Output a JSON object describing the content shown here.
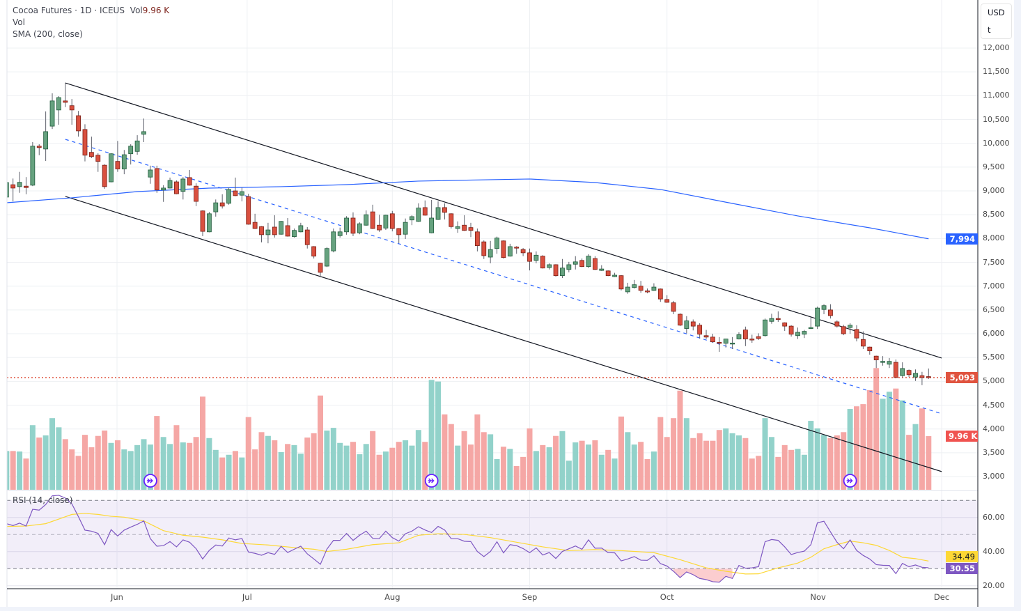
{
  "legend": {
    "symbol_line": "Cocoa Futures · 1D · ICEUS",
    "volume_label": "Vol",
    "volume_value": "9.96 K",
    "volume_pane_label": "Vol",
    "sma_label": "SMA (200, close)",
    "rsi_label": "RSI (14, close)"
  },
  "price_axis": {
    "currency": "USD",
    "unit": "t",
    "labels": [
      "12,000",
      "11,500",
      "11,000",
      "10,500",
      "10,000",
      "9,500",
      "9,000",
      "8,500",
      "8,000",
      "7,500",
      "7,000",
      "6,500",
      "6,000",
      "5,500",
      "5,000",
      "4,500",
      "4,000",
      "3,500",
      "3,000"
    ],
    "rsi_labels": [
      "60.00",
      "40.00",
      "20.00"
    ]
  },
  "badges": {
    "last_price": "5,093",
    "last_volume": "9.96 K",
    "sma_value": "7,994",
    "rsi_ma_value": "34.49",
    "rsi_value": "30.55"
  },
  "colors": {
    "up": "#66a27f",
    "up_border": "#1e5a3a",
    "down": "#d9503f",
    "down_border": "#7a1d14",
    "vol_up": "#92d2ca",
    "vol_down": "#f5a7a5",
    "sma": "#2962ff",
    "rsi": "#7e57c2",
    "rsi_ma": "#fdd835",
    "last_price": "#e0533f",
    "volume_badge": "#f05350"
  },
  "chart_data": {
    "type": "candlestick",
    "title": "Cocoa Futures · 1D · ICEUS",
    "x_tick_labels": [
      "Jun",
      "Jul",
      "Aug",
      "Sep",
      "Oct",
      "Nov",
      "Dec"
    ],
    "ylim": [
      3000,
      12000
    ],
    "candles_ohlc": [
      [
        8870,
        9200,
        8850,
        9176
      ],
      [
        9130,
        9260,
        8780,
        9060
      ],
      [
        9090,
        9400,
        8960,
        9180
      ],
      [
        9100,
        9290,
        8930,
        9070
      ],
      [
        9120,
        10025,
        9100,
        9940
      ],
      [
        9940,
        9980,
        9750,
        9910
      ],
      [
        9880,
        10670,
        9630,
        10245
      ],
      [
        10360,
        11050,
        10300,
        10890
      ],
      [
        10700,
        10990,
        10390,
        10960
      ],
      [
        10890,
        11270,
        10760,
        10860
      ],
      [
        10790,
        10930,
        10390,
        10700
      ],
      [
        10580,
        10680,
        10140,
        10260
      ],
      [
        10290,
        10400,
        9620,
        9750
      ],
      [
        9810,
        10140,
        9690,
        9720
      ],
      [
        9750,
        9790,
        9400,
        9620
      ],
      [
        9540,
        9560,
        9045,
        9090
      ],
      [
        9190,
        9790,
        9180,
        9780
      ],
      [
        9620,
        10050,
        9400,
        9460
      ],
      [
        9460,
        9860,
        9350,
        9760
      ],
      [
        9780,
        9980,
        9555,
        9940
      ],
      [
        9830,
        10170,
        9760,
        10050
      ],
      [
        10190,
        10520,
        10025,
        10245
      ],
      [
        9290,
        9530,
        9150,
        9440
      ],
      [
        9470,
        9530,
        8960,
        9020
      ],
      [
        9020,
        9120,
        8770,
        9060
      ],
      [
        9060,
        9280,
        9050,
        9220
      ],
      [
        9190,
        9220,
        8930,
        8940
      ],
      [
        8990,
        9290,
        8820,
        9250
      ],
      [
        9280,
        9440,
        9110,
        9120
      ],
      [
        9100,
        9160,
        8680,
        8780
      ],
      [
        8580,
        8590,
        8050,
        8150
      ],
      [
        8140,
        8560,
        8130,
        8520
      ],
      [
        8560,
        8820,
        8460,
        8750
      ],
      [
        8750,
        8930,
        8630,
        8680
      ],
      [
        8740,
        9070,
        8710,
        9030
      ],
      [
        9000,
        9280,
        8890,
        8900
      ],
      [
        8910,
        9070,
        8780,
        8985
      ],
      [
        8880,
        8940,
        8290,
        8300
      ],
      [
        8340,
        8520,
        8200,
        8210
      ],
      [
        8250,
        8260,
        7920,
        8080
      ],
      [
        8080,
        8330,
        7900,
        8180
      ],
      [
        8240,
        8490,
        8020,
        8080
      ],
      [
        8090,
        8370,
        8080,
        8360
      ],
      [
        8270,
        8430,
        8040,
        8050
      ],
      [
        8040,
        8210,
        8020,
        8170
      ],
      [
        8140,
        8330,
        8130,
        8270
      ],
      [
        8180,
        8240,
        7790,
        7870
      ],
      [
        7830,
        7840,
        7580,
        7630
      ],
      [
        7480,
        7490,
        7200,
        7290
      ],
      [
        7420,
        7820,
        7400,
        7790
      ],
      [
        7740,
        8210,
        7710,
        8140
      ],
      [
        8060,
        8230,
        8020,
        8140
      ],
      [
        8140,
        8470,
        8080,
        8430
      ],
      [
        8430,
        8550,
        8050,
        8110
      ],
      [
        8120,
        8340,
        8090,
        8310
      ],
      [
        8280,
        8590,
        8270,
        8500
      ],
      [
        8560,
        8710,
        8200,
        8210
      ],
      [
        8280,
        8500,
        8140,
        8180
      ],
      [
        8220,
        8500,
        8180,
        8490
      ],
      [
        8520,
        8580,
        8150,
        8210
      ],
      [
        8210,
        8220,
        7900,
        8080
      ],
      [
        8090,
        8420,
        7990,
        8340
      ],
      [
        8390,
        8490,
        8280,
        8460
      ],
      [
        8360,
        8740,
        8350,
        8640
      ],
      [
        8650,
        8800,
        8480,
        8490
      ],
      [
        8120,
        8810,
        8110,
        8430
      ],
      [
        8400,
        8780,
        8390,
        8650
      ],
      [
        8650,
        8740,
        8400,
        8550
      ],
      [
        8520,
        8530,
        8210,
        8250
      ],
      [
        8210,
        8360,
        8120,
        8250
      ],
      [
        8280,
        8490,
        8160,
        8170
      ],
      [
        8230,
        8330,
        8030,
        8170
      ],
      [
        8140,
        8210,
        7730,
        7850
      ],
      [
        7930,
        7960,
        7570,
        7640
      ],
      [
        7610,
        7950,
        7480,
        7770
      ],
      [
        7790,
        8040,
        7680,
        8010
      ],
      [
        7950,
        7960,
        7580,
        7600
      ],
      [
        7630,
        7890,
        7620,
        7830
      ],
      [
        7820,
        7840,
        7680,
        7800
      ],
      [
        7770,
        7800,
        7630,
        7700
      ],
      [
        7700,
        7790,
        7330,
        7520
      ],
      [
        7540,
        7730,
        7480,
        7650
      ],
      [
        7630,
        7650,
        7370,
        7380
      ],
      [
        7390,
        7480,
        7350,
        7450
      ],
      [
        7450,
        7460,
        7200,
        7220
      ],
      [
        7220,
        7570,
        7170,
        7380
      ],
      [
        7350,
        7510,
        7290,
        7450
      ],
      [
        7460,
        7630,
        7350,
        7510
      ],
      [
        7540,
        7580,
        7400,
        7410
      ],
      [
        7410,
        7670,
        7380,
        7630
      ],
      [
        7580,
        7630,
        7340,
        7350
      ],
      [
        7330,
        7440,
        7320,
        7360
      ],
      [
        7320,
        7330,
        7210,
        7220
      ],
      [
        7200,
        7280,
        7190,
        7230
      ],
      [
        7220,
        7230,
        6910,
        6940
      ],
      [
        6880,
        7070,
        6840,
        6980
      ],
      [
        6970,
        7130,
        6950,
        7030
      ],
      [
        7000,
        7110,
        6860,
        6910
      ],
      [
        6900,
        6950,
        6850,
        6890
      ],
      [
        6910,
        7060,
        6900,
        6980
      ],
      [
        6940,
        6950,
        6670,
        6730
      ],
      [
        6720,
        6810,
        6650,
        6660
      ],
      [
        6650,
        6690,
        6410,
        6470
      ],
      [
        6410,
        6430,
        6160,
        6180
      ],
      [
        6110,
        6370,
        6010,
        6270
      ],
      [
        6250,
        6300,
        6070,
        6160
      ],
      [
        6180,
        6220,
        5900,
        5990
      ],
      [
        5960,
        6080,
        5890,
        5930
      ],
      [
        5930,
        6000,
        5810,
        5830
      ],
      [
        5820,
        5930,
        5620,
        5810
      ],
      [
        5800,
        5890,
        5710,
        5890
      ],
      [
        5800,
        5930,
        5680,
        5805
      ],
      [
        5890,
        6030,
        5880,
        5980
      ],
      [
        6080,
        6150,
        5740,
        5890
      ],
      [
        5890,
        5980,
        5810,
        5870
      ],
      [
        5940,
        6010,
        5870,
        5900
      ],
      [
        5960,
        6320,
        5940,
        6290
      ],
      [
        6260,
        6420,
        6210,
        6320
      ],
      [
        6320,
        6470,
        6250,
        6310
      ],
      [
        6230,
        6240,
        6060,
        6160
      ],
      [
        6160,
        6180,
        5940,
        5990
      ],
      [
        5960,
        6130,
        5890,
        6030
      ],
      [
        5990,
        6080,
        5910,
        6050
      ],
      [
        6110,
        6340,
        6100,
        6130
      ],
      [
        6160,
        6570,
        6100,
        6540
      ],
      [
        6510,
        6620,
        6410,
        6590
      ],
      [
        6500,
        6620,
        6320,
        6380
      ],
      [
        6250,
        6280,
        6130,
        6160
      ],
      [
        6150,
        6190,
        5970,
        6000
      ],
      [
        6130,
        6220,
        6000,
        6180
      ],
      [
        6090,
        6180,
        5840,
        5910
      ],
      [
        5880,
        6050,
        5680,
        5740
      ],
      [
        5720,
        5730,
        5560,
        5640
      ],
      [
        5530,
        5540,
        5280,
        5450
      ],
      [
        5410,
        5530,
        5330,
        5420
      ],
      [
        5360,
        5490,
        5280,
        5420
      ],
      [
        5400,
        5460,
        5070,
        5080
      ],
      [
        5120,
        5400,
        5080,
        5270
      ],
      [
        5230,
        5250,
        5090,
        5140
      ],
      [
        5090,
        5250,
        5010,
        5170
      ],
      [
        5120,
        5200,
        4920,
        5080
      ],
      [
        5100,
        5270,
        5050,
        5093
      ]
    ],
    "volume_k": [
      7.2,
      7.2,
      7.1,
      5.8,
      12.0,
      9.7,
      10.1,
      13.3,
      11.6,
      9.4,
      7.5,
      6.3,
      10.2,
      7.9,
      10.0,
      11.0,
      8.7,
      9.2,
      7.5,
      7.2,
      8.3,
      9.4,
      8.4,
      13.7,
      9.8,
      8.5,
      12.0,
      8.8,
      8.7,
      9.8,
      17.3,
      9.6,
      7.4,
      6.0,
      6.5,
      7.2,
      6.0,
      13.5,
      7.5,
      10.7,
      10.0,
      9.2,
      7.0,
      8.5,
      8.3,
      6.7,
      9.7,
      10.5,
      17.5,
      11.0,
      11.5,
      8.7,
      8.2,
      8.9,
      6.6,
      8.5,
      10.9,
      6.5,
      7.1,
      7.8,
      8.9,
      9.2,
      8.2,
      11.1,
      8.9,
      20.4,
      20.1,
      14.0,
      12.2,
      8.2,
      10.9,
      8.4,
      14.0,
      10.7,
      10.3,
      5.7,
      8.0,
      7.6,
      4.4,
      6.1,
      11.4,
      7.2,
      8.3,
      7.9,
      10.0,
      10.9,
      5.4,
      8.8,
      9.1,
      8.4,
      9.2,
      6.5,
      7.4,
      5.8,
      13.6,
      10.7,
      8.4,
      8.9,
      5.7,
      7.1,
      13.5,
      9.8,
      13.3,
      18.4,
      13.3,
      9.6,
      10.5,
      9.1,
      9.1,
      11.1,
      11.4,
      10.5,
      10.1,
      9.6,
      5.8,
      6.3,
      13.3,
      9.8,
      6.1,
      8.3,
      7.4,
      7.6,
      6.5,
      12.8,
      11.4,
      10.2,
      9.6,
      10.1,
      10.7,
      15.0,
      15.5,
      15.9,
      18.5,
      22.6,
      16.9,
      18.2,
      18.8,
      16.6,
      10.2,
      12.2,
      15.1,
      9.96
    ],
    "sma_200_by_bar": [
      [
        0,
        8752
      ],
      [
        10,
        8855
      ],
      [
        20,
        8986
      ],
      [
        31,
        9059
      ],
      [
        42,
        9089
      ],
      [
        52,
        9132
      ],
      [
        63,
        9206
      ],
      [
        74,
        9235
      ],
      [
        80,
        9250
      ],
      [
        90,
        9176
      ],
      [
        100,
        9030
      ],
      [
        111,
        8737
      ],
      [
        121,
        8474
      ],
      [
        132,
        8225
      ],
      [
        141,
        7994
      ]
    ],
    "rsi_14": [
      56.4,
      55.3,
      56.7,
      55.0,
      64.8,
      64.3,
      67.6,
      72.7,
      73.0,
      71.4,
      68.0,
      60.5,
      52.6,
      52.0,
      50.7,
      44.1,
      52.9,
      49.2,
      52.6,
      54.4,
      56.0,
      58.0,
      47.6,
      43.2,
      43.5,
      45.9,
      42.8,
      46.9,
      45.5,
      41.7,
      35.7,
      40.7,
      43.9,
      43.3,
      48.0,
      46.9,
      47.7,
      39.8,
      39.0,
      37.9,
      39.4,
      38.4,
      43.1,
      39.5,
      41.4,
      43.2,
      38.7,
      35.7,
      32.6,
      41.5,
      46.6,
      46.6,
      50.7,
      46.6,
      49.6,
      52.0,
      47.8,
      47.6,
      52.0,
      48.2,
      46.2,
      50.5,
      52.0,
      54.6,
      52.7,
      51.2,
      54.8,
      52.7,
      47.6,
      47.6,
      46.1,
      45.9,
      40.1,
      37.1,
      40.1,
      45.8,
      39.3,
      44.1,
      43.5,
      41.8,
      39.4,
      42.2,
      38.0,
      39.5,
      36.0,
      40.1,
      41.7,
      43.3,
      41.4,
      46.9,
      42.0,
      42.1,
      39.4,
      39.3,
      34.6,
      35.7,
      37.1,
      35.0,
      34.9,
      37.6,
      33.0,
      31.6,
      28.5,
      24.8,
      28.1,
      26.5,
      24.3,
      23.6,
      22.4,
      22.1,
      25.5,
      24.3,
      31.9,
      30.3,
      30.5,
      31.2,
      45.8,
      47.1,
      46.6,
      42.8,
      38.3,
      39.5,
      40.3,
      44.1,
      56.9,
      57.8,
      51.6,
      45.5,
      41.7,
      46.9,
      40.7,
      37.8,
      35.7,
      32.4,
      32.0,
      31.9,
      27.1,
      33.1,
      31.2,
      32.2,
      30.8,
      30.55
    ],
    "rsi_ma_by_bar": [
      [
        0,
        54.8
      ],
      [
        3,
        55.0
      ],
      [
        6,
        56.4
      ],
      [
        8,
        59.1
      ],
      [
        10,
        61.8
      ],
      [
        12,
        62.4
      ],
      [
        14,
        61.8
      ],
      [
        16,
        60.7
      ],
      [
        18,
        60.2
      ],
      [
        21,
        58.0
      ],
      [
        24,
        52.3
      ],
      [
        27,
        49.6
      ],
      [
        30,
        48.5
      ],
      [
        33,
        46.9
      ],
      [
        36,
        44.8
      ],
      [
        40,
        43.9
      ],
      [
        44,
        42.4
      ],
      [
        47,
        41.4
      ],
      [
        49,
        40.1
      ],
      [
        52,
        41.4
      ],
      [
        56,
        44.1
      ],
      [
        60,
        45.2
      ],
      [
        63,
        49.6
      ],
      [
        66,
        50.5
      ],
      [
        70,
        50.1
      ],
      [
        74,
        48.2
      ],
      [
        78,
        45.5
      ],
      [
        82,
        42.8
      ],
      [
        86,
        40.6
      ],
      [
        90,
        41.2
      ],
      [
        94,
        40.6
      ],
      [
        99,
        39.4
      ],
      [
        103,
        35.3
      ],
      [
        107,
        30.5
      ],
      [
        110,
        28.5
      ],
      [
        113,
        26.9
      ],
      [
        115,
        27.0
      ],
      [
        118,
        30.5
      ],
      [
        121,
        33.3
      ],
      [
        123,
        36.7
      ],
      [
        125,
        41.7
      ],
      [
        127,
        44.1
      ],
      [
        129,
        46.2
      ],
      [
        131,
        45.2
      ],
      [
        133,
        43.7
      ],
      [
        135,
        40.7
      ],
      [
        137,
        36.7
      ],
      [
        139,
        35.9
      ],
      [
        141,
        34.49
      ]
    ],
    "rsi_levels": [
      70,
      50,
      30
    ],
    "rsi_ylim": [
      14,
      76
    ],
    "trendlines": [
      {
        "style": "solid",
        "color": "#131722",
        "from": [
          9,
          11268
        ],
        "to": [
          143,
          5490
        ]
      },
      {
        "style": "solid",
        "color": "#131722",
        "from": [
          9,
          8884
        ],
        "to": [
          143,
          3105
        ]
      },
      {
        "style": "dashed",
        "color": "#2962ff",
        "from": [
          9,
          10083
        ],
        "to": [
          143,
          4320
        ]
      }
    ],
    "event_markers_at_bar": [
      22,
      65,
      129
    ],
    "last_price": 5093,
    "grid": true
  }
}
